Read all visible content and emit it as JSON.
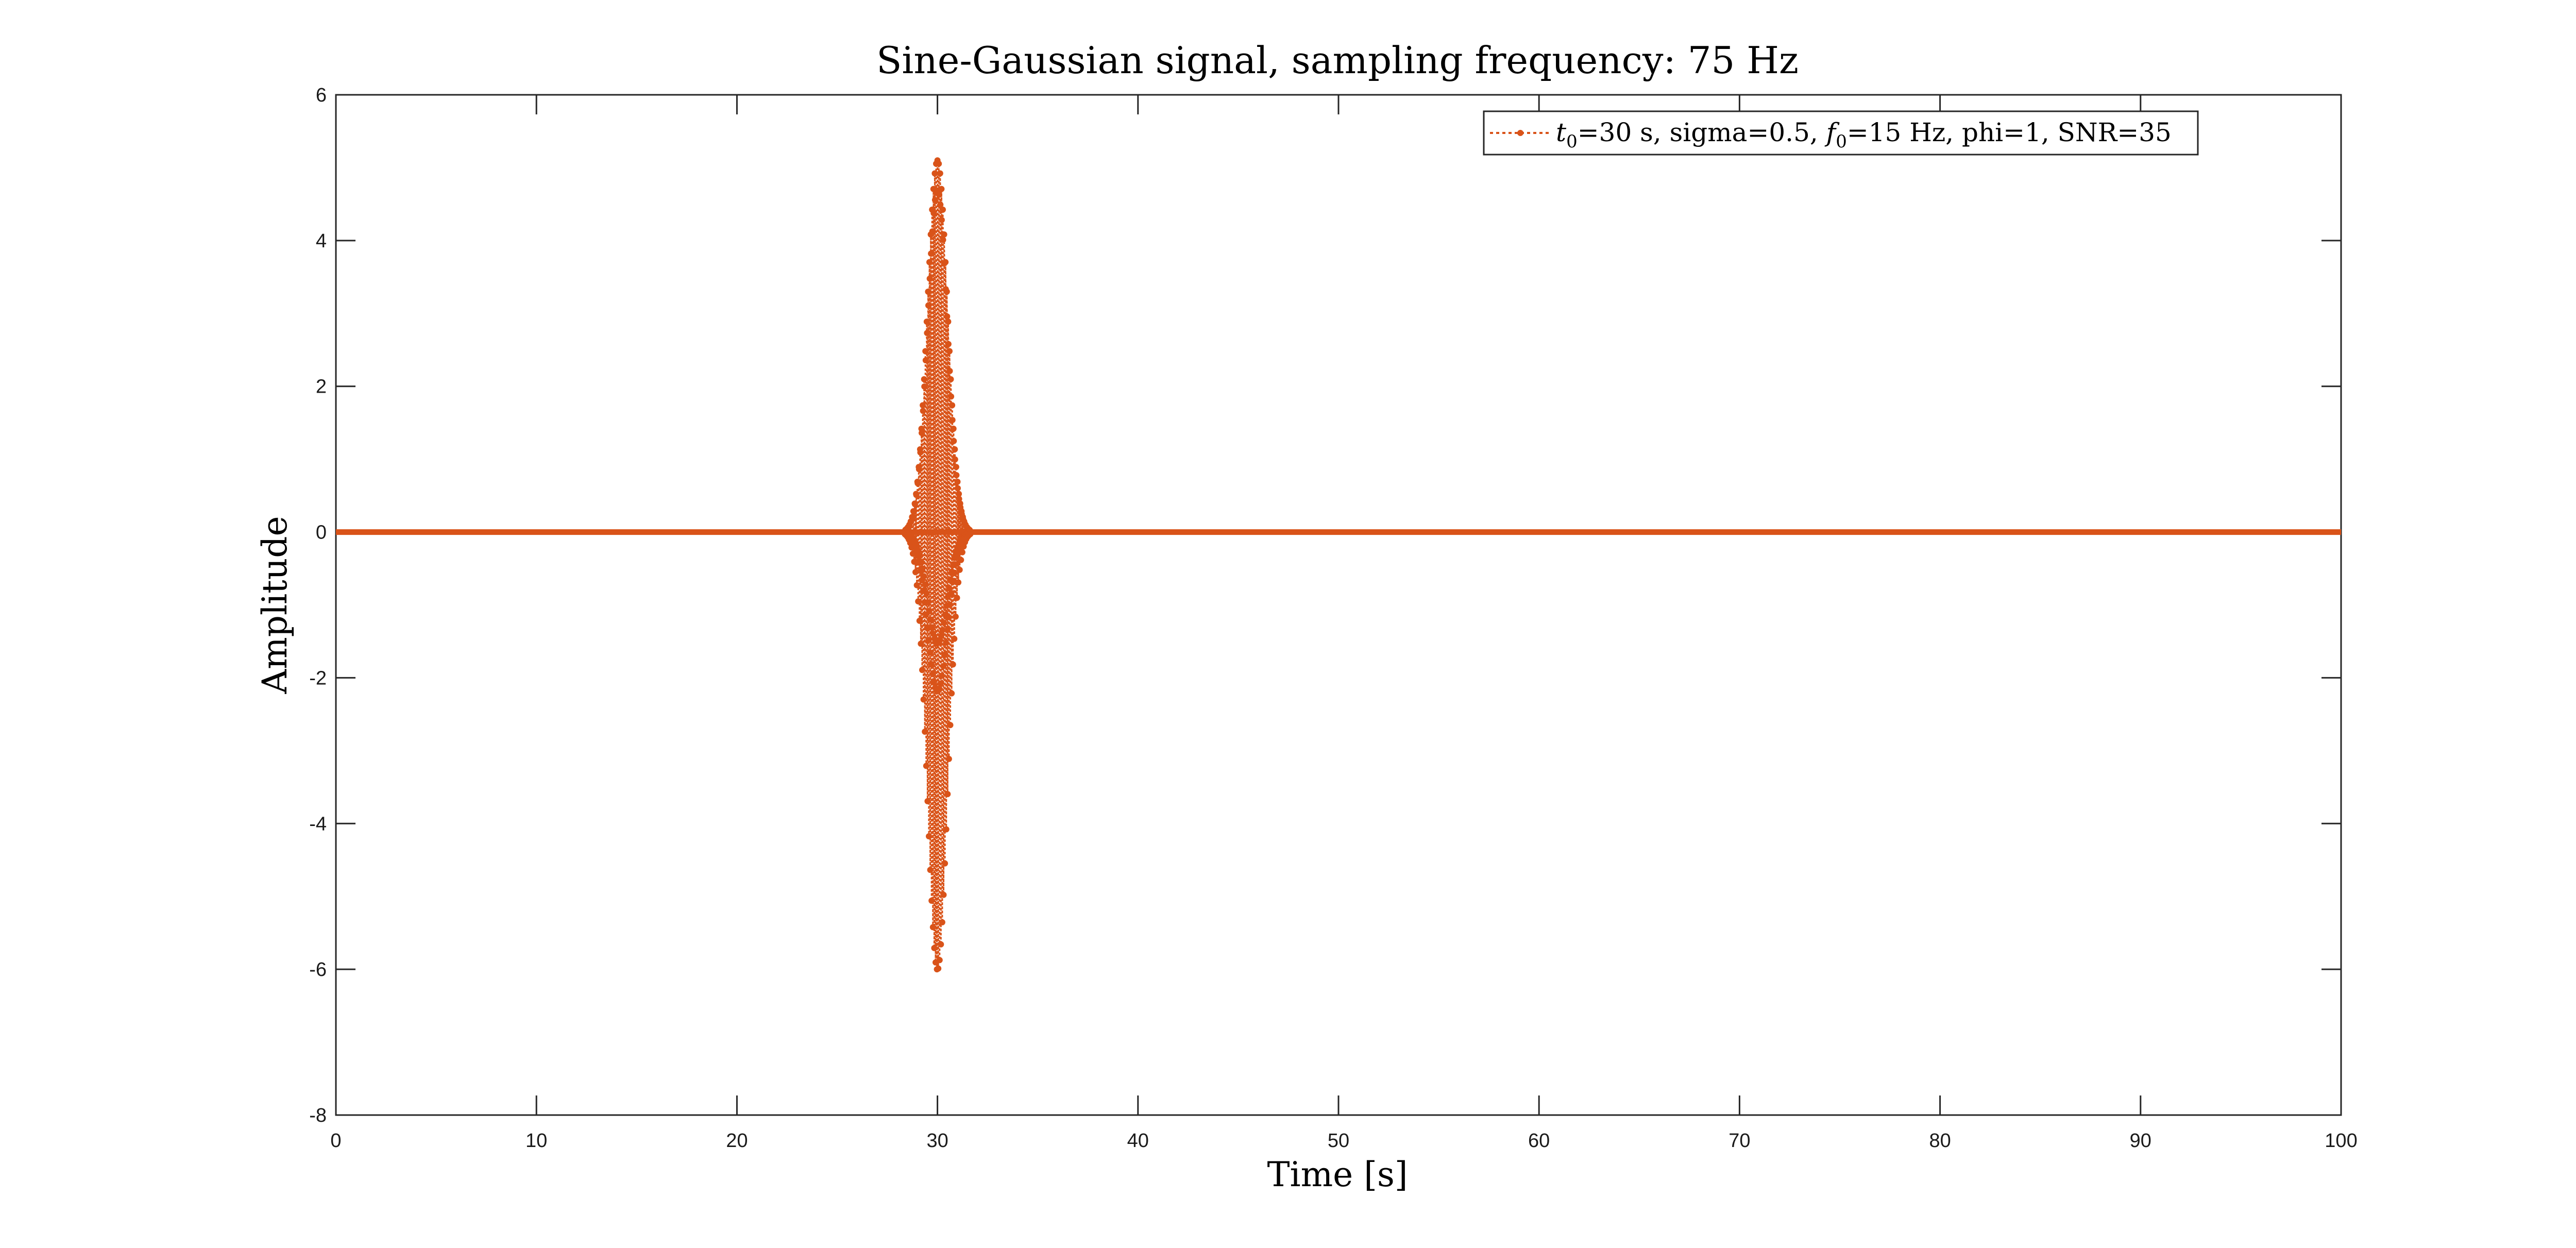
{
  "chart_data": {
    "type": "line",
    "title": "Sine-Gaussian signal, sampling frequency: 75 Hz",
    "xlabel": "Time [s]",
    "ylabel": "Amplitude",
    "xlim": [
      0,
      100
    ],
    "ylim": [
      -8,
      6
    ],
    "xticks": [
      "0",
      "10",
      "20",
      "30",
      "40",
      "50",
      "60",
      "70",
      "80",
      "90",
      "100"
    ],
    "yticks": [
      "-8",
      "-6",
      "-4",
      "-2",
      "0",
      "2",
      "4",
      "6"
    ],
    "grid": false,
    "legend_placement": "top-right",
    "series": [
      {
        "legend": {
          "t_sym": "t",
          "t_sub": "0",
          "t_rest": "=30 s, sigma=0.5, ",
          "f_sym": "f",
          "f_sub": "0",
          "f_rest": "=15 Hz, phi=1, SNR=35"
        },
        "color": "#d95319",
        "line_style": "dotted",
        "marker": "circle",
        "signal": {
          "t0": 30,
          "sigma": 0.5,
          "f0": 15,
          "phi": 1,
          "sampling_hz": 75,
          "peak_max": 5.1,
          "peak_min": -6.0
        }
      }
    ]
  }
}
